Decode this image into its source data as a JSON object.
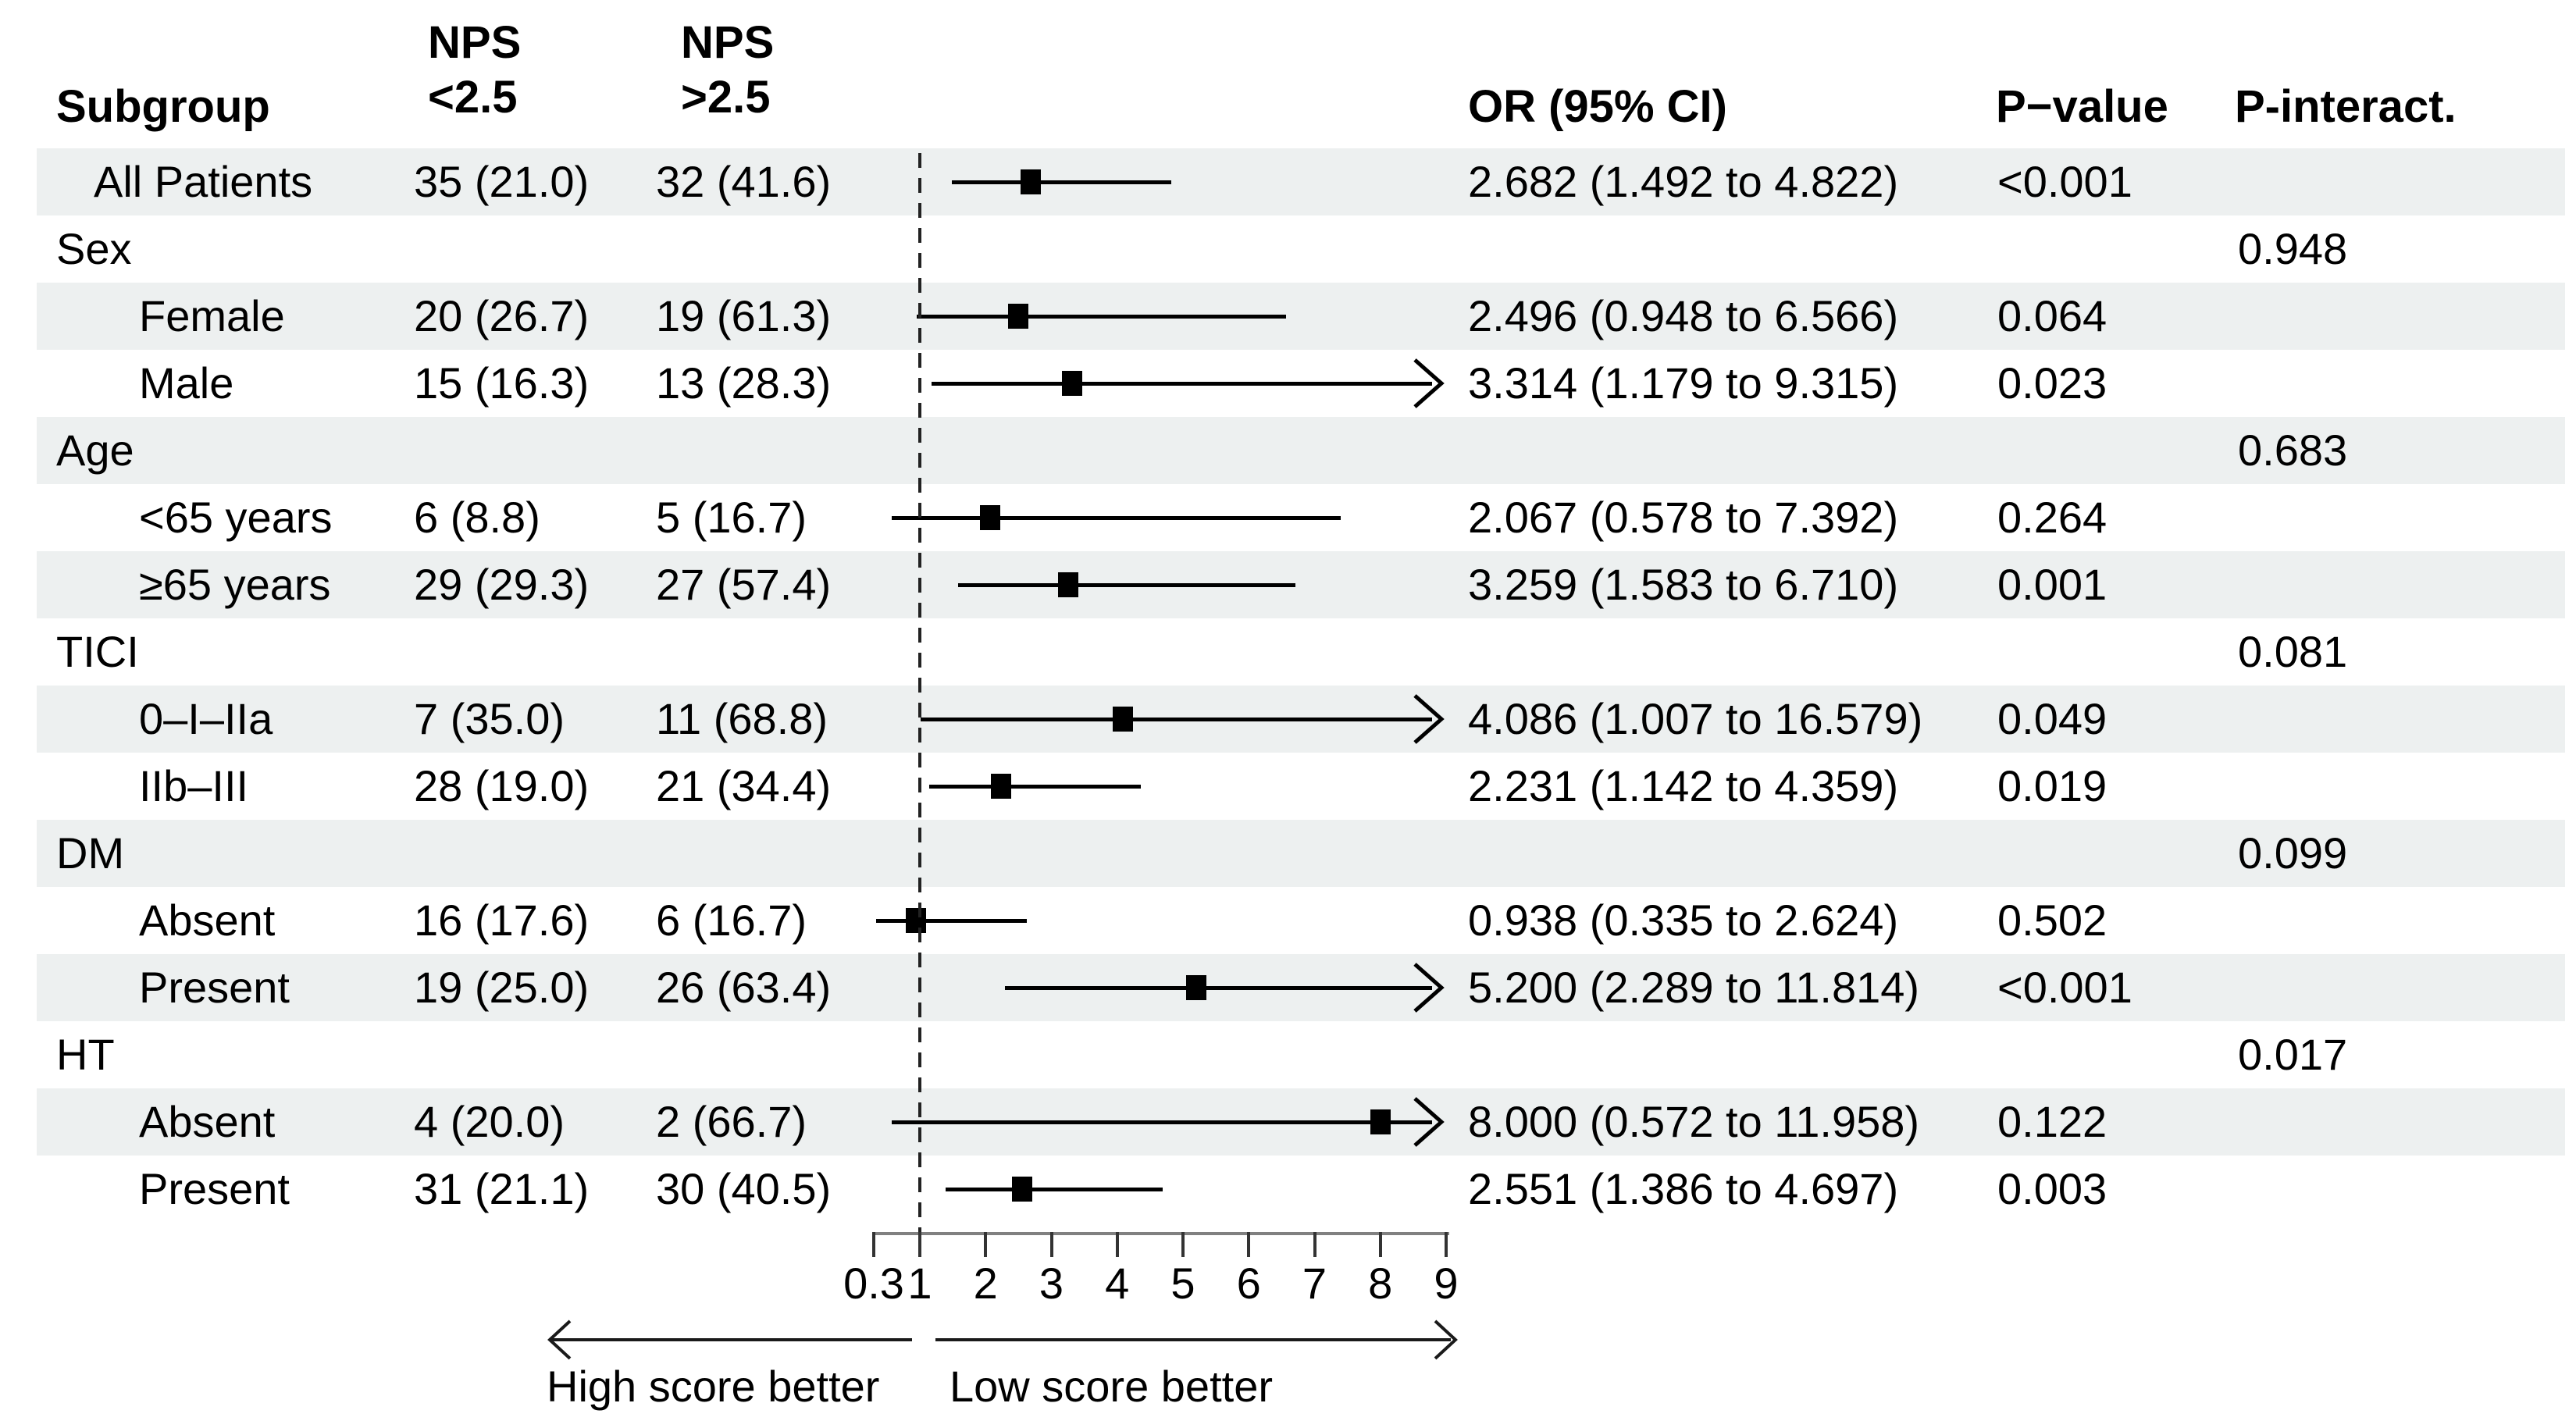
{
  "chart_data": {
    "type": "forest",
    "columns": {
      "subgroup": "Subgroup",
      "nps_low_l1": "NPS",
      "nps_low_l2": "<2.5",
      "nps_high_l1": "NPS",
      "nps_high_l2": ">2.5",
      "or_ci": "OR (95% CI)",
      "p_value": "P−value",
      "p_interact": "P-interact."
    },
    "axis": {
      "ticks": [
        0.3,
        1,
        2,
        3,
        4,
        5,
        6,
        7,
        8,
        9
      ],
      "min": 0.3,
      "max": 9,
      "refline": 1,
      "scale": "linear"
    },
    "direction_labels": {
      "left": "High score better",
      "right": "Low score better"
    },
    "rows": [
      {
        "type": "data",
        "label": "All Patients",
        "indent": 1,
        "nps_low": "35 (21.0)",
        "nps_high": "32 (41.6)",
        "or": 2.682,
        "lo": 1.492,
        "hi": 4.822,
        "clip_high": false,
        "or_ci": "2.682 (1.492 to 4.822)",
        "p_value": "<0.001",
        "p_interact": "",
        "shaded": true
      },
      {
        "type": "group",
        "label": "Sex",
        "indent": 0,
        "nps_low": "",
        "nps_high": "",
        "or_ci": "",
        "p_value": "",
        "p_interact": "0.948",
        "shaded": false
      },
      {
        "type": "data",
        "label": "Female",
        "indent": 2,
        "nps_low": "20 (26.7)",
        "nps_high": "19 (61.3)",
        "or": 2.496,
        "lo": 0.948,
        "hi": 6.566,
        "clip_high": false,
        "or_ci": "2.496 (0.948 to 6.566)",
        "p_value": "0.064",
        "p_interact": "",
        "shaded": true
      },
      {
        "type": "data",
        "label": "Male",
        "indent": 2,
        "nps_low": "15 (16.3)",
        "nps_high": "13 (28.3)",
        "or": 3.314,
        "lo": 1.179,
        "hi": 9.315,
        "clip_high": true,
        "or_ci": "3.314 (1.179 to 9.315)",
        "p_value": "0.023",
        "p_interact": "",
        "shaded": false
      },
      {
        "type": "group",
        "label": "Age",
        "indent": 0,
        "nps_low": "",
        "nps_high": "",
        "or_ci": "",
        "p_value": "",
        "p_interact": "0.683",
        "shaded": true
      },
      {
        "type": "data",
        "label": "<65 years",
        "indent": 2,
        "nps_low": "6 (8.8)",
        "nps_high": "5 (16.7)",
        "or": 2.067,
        "lo": 0.578,
        "hi": 7.392,
        "clip_high": false,
        "or_ci": "2.067 (0.578 to 7.392)",
        "p_value": "0.264",
        "p_interact": "",
        "shaded": false
      },
      {
        "type": "data",
        "label": "≥65 years",
        "indent": 2,
        "nps_low": "29 (29.3)",
        "nps_high": "27 (57.4)",
        "or": 3.259,
        "lo": 1.583,
        "hi": 6.71,
        "clip_high": false,
        "or_ci": "3.259 (1.583 to 6.710)",
        "p_value": "0.001",
        "p_interact": "",
        "shaded": true
      },
      {
        "type": "group",
        "label": "TICI",
        "indent": 0,
        "nps_low": "",
        "nps_high": "",
        "or_ci": "",
        "p_value": "",
        "p_interact": "0.081",
        "shaded": false
      },
      {
        "type": "data",
        "label": "0–I–IIa",
        "indent": 2,
        "nps_low": "7 (35.0)",
        "nps_high": "11 (68.8)",
        "or": 4.086,
        "lo": 1.007,
        "hi": 16.579,
        "clip_high": true,
        "or_ci": "4.086 (1.007 to 16.579)",
        "p_value": "0.049",
        "p_interact": "",
        "shaded": true
      },
      {
        "type": "data",
        "label": "IIb–III",
        "indent": 2,
        "nps_low": "28 (19.0)",
        "nps_high": "21 (34.4)",
        "or": 2.231,
        "lo": 1.142,
        "hi": 4.359,
        "clip_high": false,
        "or_ci": "2.231 (1.142 to 4.359)",
        "p_value": "0.019",
        "p_interact": "",
        "shaded": false
      },
      {
        "type": "group",
        "label": "DM",
        "indent": 0,
        "nps_low": "",
        "nps_high": "",
        "or_ci": "",
        "p_value": "",
        "p_interact": "0.099",
        "shaded": true
      },
      {
        "type": "data",
        "label": "Absent",
        "indent": 2,
        "nps_low": "16 (17.6)",
        "nps_high": "6 (16.7)",
        "or": 0.938,
        "lo": 0.335,
        "hi": 2.624,
        "clip_high": false,
        "or_ci": "0.938 (0.335 to 2.624)",
        "p_value": "0.502",
        "p_interact": "",
        "shaded": false
      },
      {
        "type": "data",
        "label": "Present",
        "indent": 2,
        "nps_low": "19 (25.0)",
        "nps_high": "26 (63.4)",
        "or": 5.2,
        "lo": 2.289,
        "hi": 11.814,
        "clip_high": true,
        "or_ci": "5.200 (2.289 to 11.814)",
        "p_value": "<0.001",
        "p_interact": "",
        "shaded": true
      },
      {
        "type": "group",
        "label": "HT",
        "indent": 0,
        "nps_low": "",
        "nps_high": "",
        "or_ci": "",
        "p_value": "",
        "p_interact": "0.017",
        "shaded": false
      },
      {
        "type": "data",
        "label": "Absent",
        "indent": 2,
        "nps_low": "4 (20.0)",
        "nps_high": "2 (66.7)",
        "or": 8.0,
        "lo": 0.572,
        "hi": 11.958,
        "clip_high": true,
        "or_ci": "8.000 (0.572 to 11.958)",
        "p_value": "0.122",
        "p_interact": "",
        "shaded": true
      },
      {
        "type": "data",
        "label": "Present",
        "indent": 2,
        "nps_low": "31 (21.1)",
        "nps_high": "30 (40.5)",
        "or": 2.551,
        "lo": 1.386,
        "hi": 4.697,
        "clip_high": false,
        "or_ci": "2.551 (1.386 to 4.697)",
        "p_value": "0.003",
        "p_interact": "",
        "shaded": false
      }
    ]
  },
  "colors": {
    "band": "#edf0f0",
    "text": "#000000",
    "marker": "#000000",
    "refline": "#222222",
    "axis_line": "#808080"
  }
}
